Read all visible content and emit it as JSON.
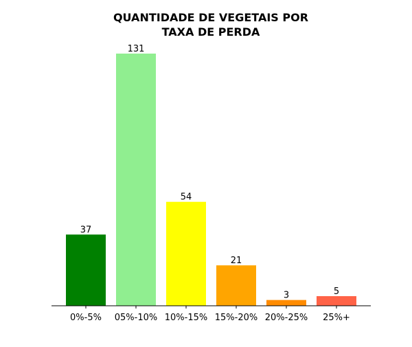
{
  "chart_data": {
    "type": "bar",
    "title": "QUANTIDADE DE VEGETAIS POR TAXA DE PERDA",
    "title_lines": [
      "QUANTIDADE DE VEGETAIS POR",
      "TAXA DE PERDA"
    ],
    "categories": [
      "0%-5%",
      "05%-10%",
      "10%-15%",
      "15%-20%",
      "20%-25%",
      "25%+"
    ],
    "values": [
      37,
      131,
      54,
      21,
      3,
      5
    ],
    "data_labels": [
      "37",
      "131",
      "54",
      "21",
      "3",
      "5"
    ],
    "colors": [
      "#008000",
      "#90ee90",
      "#ffff00",
      "#ffa500",
      "#ff8c00",
      "#ff6347"
    ],
    "xlabel": "",
    "ylabel": "",
    "ylim": [
      0,
      131
    ],
    "grid": false,
    "y_axis_visible": false
  }
}
